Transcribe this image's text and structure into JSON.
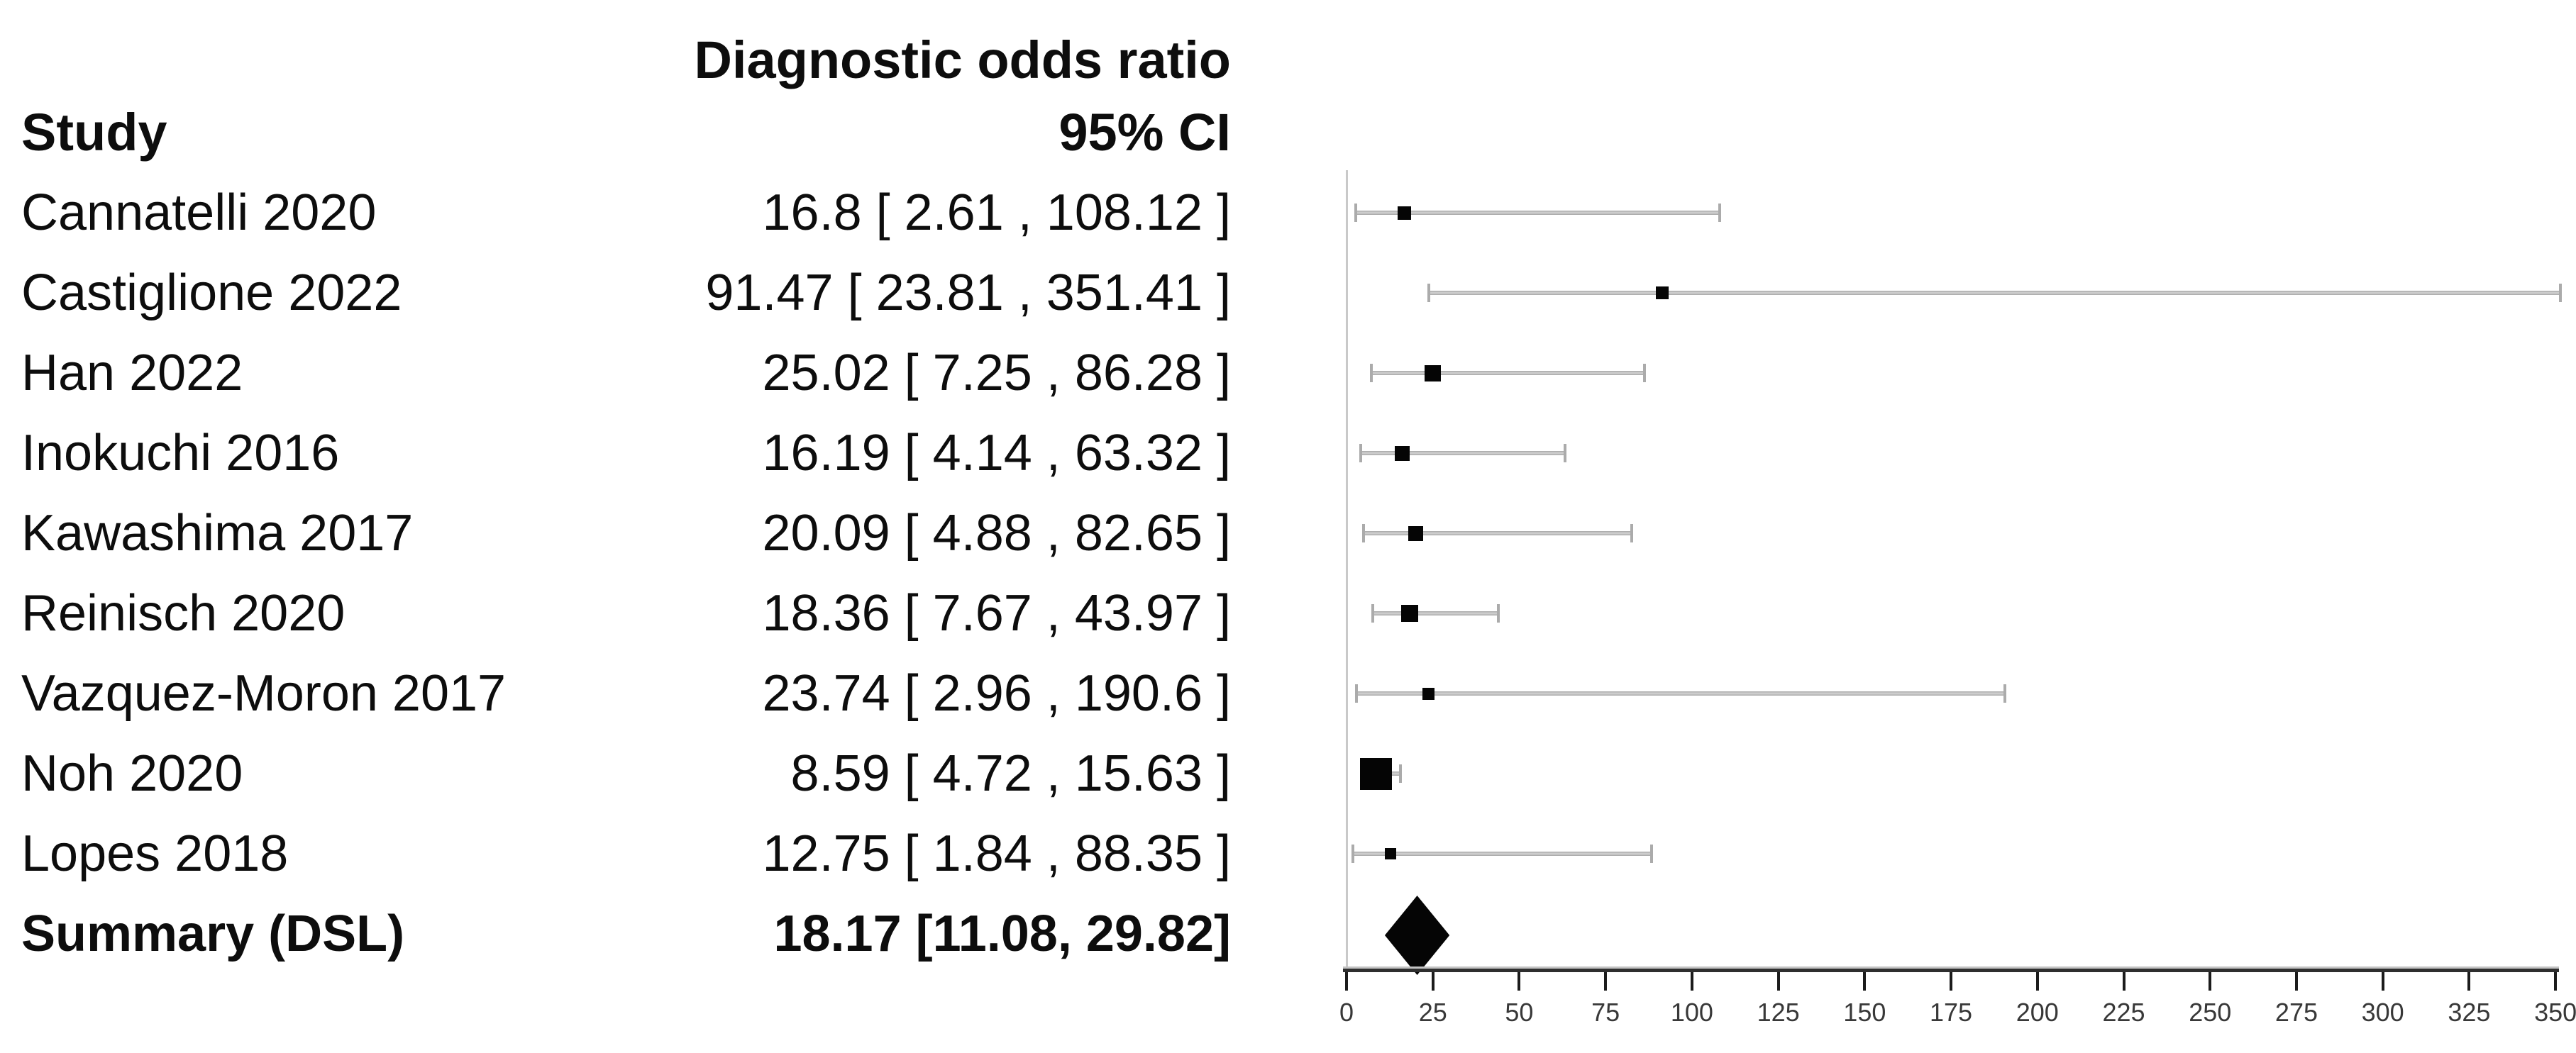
{
  "table": {
    "header_estimate": "Diagnostic odds ratio",
    "header_study": "Study",
    "header_ci": "95% CI"
  },
  "colors": {
    "marker": "#050505",
    "ci_bar": "#b5b5b5",
    "ci_cap": "#ababab",
    "axis_line": "#2e2e2e",
    "reference_line": "#c9c9c9",
    "text": "#0d0d0d",
    "tick_label": "#383838",
    "background": "#ffffff"
  },
  "chart_data": {
    "type": "scatter",
    "subtype": "forest-plot",
    "title": "Diagnostic odds ratio 95% CI",
    "xlabel": "",
    "ylabel": "",
    "xlim": [
      0,
      350
    ],
    "x_ticks": [
      0,
      25,
      50,
      75,
      100,
      125,
      150,
      175,
      200,
      225,
      250,
      275,
      300,
      325,
      350
    ],
    "grid": false,
    "legend": "none",
    "reference_line_x": 0,
    "studies": [
      {
        "name": "Cannatelli 2020",
        "label": "16.8 [ 2.61 , 108.12 ]",
        "est": 16.8,
        "lo": 2.61,
        "hi": 108.12,
        "marker_size": 19
      },
      {
        "name": "Castiglione 2022",
        "label": "91.47 [ 23.81 , 351.41 ]",
        "est": 91.47,
        "lo": 23.81,
        "hi": 351.41,
        "marker_size": 18
      },
      {
        "name": "Han 2022",
        "label": "25.02 [ 7.25 , 86.28 ]",
        "est": 25.02,
        "lo": 7.25,
        "hi": 86.28,
        "marker_size": 23
      },
      {
        "name": "Inokuchi 2016",
        "label": "16.19 [ 4.14 , 63.32 ]",
        "est": 16.19,
        "lo": 4.14,
        "hi": 63.32,
        "marker_size": 21
      },
      {
        "name": "Kawashima 2017",
        "label": "20.09 [ 4.88 , 82.65 ]",
        "est": 20.09,
        "lo": 4.88,
        "hi": 82.65,
        "marker_size": 21
      },
      {
        "name": "Reinisch 2020",
        "label": "18.36 [ 7.67 , 43.97 ]",
        "est": 18.36,
        "lo": 7.67,
        "hi": 43.97,
        "marker_size": 24
      },
      {
        "name": "Vazquez-Moron 2017",
        "label": "23.74 [ 2.96 , 190.6 ]",
        "est": 23.74,
        "lo": 2.96,
        "hi": 190.6,
        "marker_size": 17
      },
      {
        "name": "Noh 2020",
        "label": "8.59 [ 4.72 , 15.63 ]",
        "est": 8.59,
        "lo": 4.72,
        "hi": 15.63,
        "marker_size": 45
      },
      {
        "name": "Lopes 2018",
        "label": "12.75 [ 1.84 , 88.35 ]",
        "est": 12.75,
        "lo": 1.84,
        "hi": 88.35,
        "marker_size": 16
      }
    ],
    "summary": {
      "name": "Summary (DSL)",
      "label": "18.17 [11.08, 29.82]",
      "est": 18.17,
      "lo": 11.08,
      "hi": 29.82
    }
  }
}
